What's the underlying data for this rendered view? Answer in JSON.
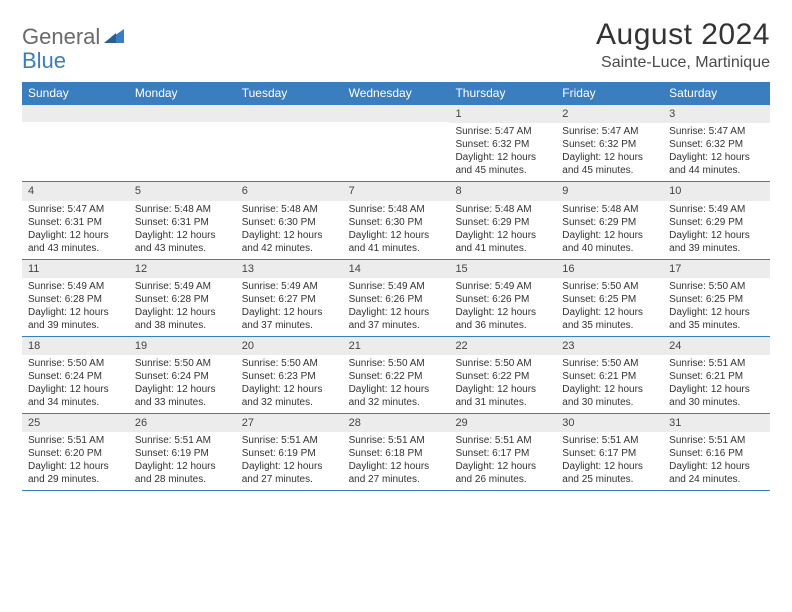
{
  "logo": {
    "general": "General",
    "blue": "Blue"
  },
  "title": "August 2024",
  "location": "Sainte-Luce, Martinique",
  "colors": {
    "header_bg": "#3a7ebf",
    "header_text": "#ffffff",
    "daynum_bg": "#ececec",
    "rule": "#3a7ebf",
    "text": "#333333",
    "logo_gray": "#6a6a6a",
    "logo_blue": "#3a7ebf"
  },
  "dow": [
    "Sunday",
    "Monday",
    "Tuesday",
    "Wednesday",
    "Thursday",
    "Friday",
    "Saturday"
  ],
  "weeks": [
    [
      {
        "n": "",
        "sr": "",
        "ss": "",
        "dl": ""
      },
      {
        "n": "",
        "sr": "",
        "ss": "",
        "dl": ""
      },
      {
        "n": "",
        "sr": "",
        "ss": "",
        "dl": ""
      },
      {
        "n": "",
        "sr": "",
        "ss": "",
        "dl": ""
      },
      {
        "n": "1",
        "sr": "Sunrise: 5:47 AM",
        "ss": "Sunset: 6:32 PM",
        "dl": "Daylight: 12 hours and 45 minutes."
      },
      {
        "n": "2",
        "sr": "Sunrise: 5:47 AM",
        "ss": "Sunset: 6:32 PM",
        "dl": "Daylight: 12 hours and 45 minutes."
      },
      {
        "n": "3",
        "sr": "Sunrise: 5:47 AM",
        "ss": "Sunset: 6:32 PM",
        "dl": "Daylight: 12 hours and 44 minutes."
      }
    ],
    [
      {
        "n": "4",
        "sr": "Sunrise: 5:47 AM",
        "ss": "Sunset: 6:31 PM",
        "dl": "Daylight: 12 hours and 43 minutes."
      },
      {
        "n": "5",
        "sr": "Sunrise: 5:48 AM",
        "ss": "Sunset: 6:31 PM",
        "dl": "Daylight: 12 hours and 43 minutes."
      },
      {
        "n": "6",
        "sr": "Sunrise: 5:48 AM",
        "ss": "Sunset: 6:30 PM",
        "dl": "Daylight: 12 hours and 42 minutes."
      },
      {
        "n": "7",
        "sr": "Sunrise: 5:48 AM",
        "ss": "Sunset: 6:30 PM",
        "dl": "Daylight: 12 hours and 41 minutes."
      },
      {
        "n": "8",
        "sr": "Sunrise: 5:48 AM",
        "ss": "Sunset: 6:29 PM",
        "dl": "Daylight: 12 hours and 41 minutes."
      },
      {
        "n": "9",
        "sr": "Sunrise: 5:48 AM",
        "ss": "Sunset: 6:29 PM",
        "dl": "Daylight: 12 hours and 40 minutes."
      },
      {
        "n": "10",
        "sr": "Sunrise: 5:49 AM",
        "ss": "Sunset: 6:29 PM",
        "dl": "Daylight: 12 hours and 39 minutes."
      }
    ],
    [
      {
        "n": "11",
        "sr": "Sunrise: 5:49 AM",
        "ss": "Sunset: 6:28 PM",
        "dl": "Daylight: 12 hours and 39 minutes."
      },
      {
        "n": "12",
        "sr": "Sunrise: 5:49 AM",
        "ss": "Sunset: 6:28 PM",
        "dl": "Daylight: 12 hours and 38 minutes."
      },
      {
        "n": "13",
        "sr": "Sunrise: 5:49 AM",
        "ss": "Sunset: 6:27 PM",
        "dl": "Daylight: 12 hours and 37 minutes."
      },
      {
        "n": "14",
        "sr": "Sunrise: 5:49 AM",
        "ss": "Sunset: 6:26 PM",
        "dl": "Daylight: 12 hours and 37 minutes."
      },
      {
        "n": "15",
        "sr": "Sunrise: 5:49 AM",
        "ss": "Sunset: 6:26 PM",
        "dl": "Daylight: 12 hours and 36 minutes."
      },
      {
        "n": "16",
        "sr": "Sunrise: 5:50 AM",
        "ss": "Sunset: 6:25 PM",
        "dl": "Daylight: 12 hours and 35 minutes."
      },
      {
        "n": "17",
        "sr": "Sunrise: 5:50 AM",
        "ss": "Sunset: 6:25 PM",
        "dl": "Daylight: 12 hours and 35 minutes."
      }
    ],
    [
      {
        "n": "18",
        "sr": "Sunrise: 5:50 AM",
        "ss": "Sunset: 6:24 PM",
        "dl": "Daylight: 12 hours and 34 minutes."
      },
      {
        "n": "19",
        "sr": "Sunrise: 5:50 AM",
        "ss": "Sunset: 6:24 PM",
        "dl": "Daylight: 12 hours and 33 minutes."
      },
      {
        "n": "20",
        "sr": "Sunrise: 5:50 AM",
        "ss": "Sunset: 6:23 PM",
        "dl": "Daylight: 12 hours and 32 minutes."
      },
      {
        "n": "21",
        "sr": "Sunrise: 5:50 AM",
        "ss": "Sunset: 6:22 PM",
        "dl": "Daylight: 12 hours and 32 minutes."
      },
      {
        "n": "22",
        "sr": "Sunrise: 5:50 AM",
        "ss": "Sunset: 6:22 PM",
        "dl": "Daylight: 12 hours and 31 minutes."
      },
      {
        "n": "23",
        "sr": "Sunrise: 5:50 AM",
        "ss": "Sunset: 6:21 PM",
        "dl": "Daylight: 12 hours and 30 minutes."
      },
      {
        "n": "24",
        "sr": "Sunrise: 5:51 AM",
        "ss": "Sunset: 6:21 PM",
        "dl": "Daylight: 12 hours and 30 minutes."
      }
    ],
    [
      {
        "n": "25",
        "sr": "Sunrise: 5:51 AM",
        "ss": "Sunset: 6:20 PM",
        "dl": "Daylight: 12 hours and 29 minutes."
      },
      {
        "n": "26",
        "sr": "Sunrise: 5:51 AM",
        "ss": "Sunset: 6:19 PM",
        "dl": "Daylight: 12 hours and 28 minutes."
      },
      {
        "n": "27",
        "sr": "Sunrise: 5:51 AM",
        "ss": "Sunset: 6:19 PM",
        "dl": "Daylight: 12 hours and 27 minutes."
      },
      {
        "n": "28",
        "sr": "Sunrise: 5:51 AM",
        "ss": "Sunset: 6:18 PM",
        "dl": "Daylight: 12 hours and 27 minutes."
      },
      {
        "n": "29",
        "sr": "Sunrise: 5:51 AM",
        "ss": "Sunset: 6:17 PM",
        "dl": "Daylight: 12 hours and 26 minutes."
      },
      {
        "n": "30",
        "sr": "Sunrise: 5:51 AM",
        "ss": "Sunset: 6:17 PM",
        "dl": "Daylight: 12 hours and 25 minutes."
      },
      {
        "n": "31",
        "sr": "Sunrise: 5:51 AM",
        "ss": "Sunset: 6:16 PM",
        "dl": "Daylight: 12 hours and 24 minutes."
      }
    ]
  ]
}
